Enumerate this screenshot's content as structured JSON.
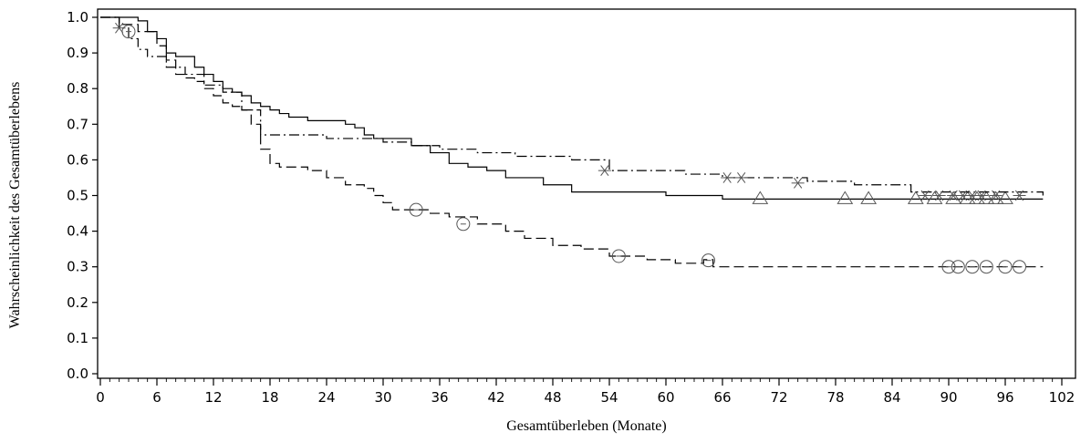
{
  "chart_data": {
    "type": "line",
    "title": "",
    "xlabel": "Gesamtüberleben (Monate)",
    "ylabel": "Wahrscheinlichkeit des Gesamtüberlebens",
    "xlim": [
      0,
      102
    ],
    "ylim": [
      0.0,
      1.0
    ],
    "x_ticks": [
      0,
      6,
      12,
      18,
      24,
      30,
      36,
      42,
      48,
      54,
      60,
      66,
      72,
      78,
      84,
      90,
      96,
      102
    ],
    "x_tick_labels": [
      "0",
      "6",
      "12",
      "18",
      "24",
      "30",
      "36",
      "42",
      "48",
      "54",
      "60",
      "66",
      "72",
      "78",
      "84",
      "90",
      "96",
      "102"
    ],
    "y_ticks": [
      0.0,
      0.1,
      0.2,
      0.3,
      0.4,
      0.5,
      0.6,
      0.7,
      0.8,
      0.9,
      1.0
    ],
    "y_tick_labels": [
      "0.0",
      "0.1",
      "0.2",
      "0.3",
      "0.4",
      "0.5",
      "0.6",
      "0.7",
      "0.8",
      "0.9",
      "1.0"
    ],
    "grid": false,
    "legend": "none",
    "series": [
      {
        "style": "solid",
        "censor_marker": "triangle",
        "x": [
          0,
          4,
          5,
          6,
          7,
          8,
          10,
          11,
          12,
          13,
          14,
          15,
          16,
          17,
          18,
          19,
          20,
          21,
          22,
          23,
          24,
          26,
          27,
          28,
          29,
          31,
          33,
          35,
          37,
          39,
          41,
          43,
          47,
          50,
          60,
          66,
          100
        ],
        "y": [
          1.0,
          0.99,
          0.96,
          0.94,
          0.9,
          0.89,
          0.86,
          0.84,
          0.82,
          0.8,
          0.79,
          0.78,
          0.76,
          0.75,
          0.74,
          0.73,
          0.72,
          0.72,
          0.71,
          0.71,
          0.71,
          0.7,
          0.69,
          0.67,
          0.66,
          0.66,
          0.64,
          0.62,
          0.59,
          0.58,
          0.57,
          0.55,
          0.53,
          0.51,
          0.5,
          0.49,
          0.49
        ],
        "censored": [
          {
            "x": 70,
            "y": 0.49
          },
          {
            "x": 79,
            "y": 0.49
          },
          {
            "x": 81.5,
            "y": 0.49
          },
          {
            "x": 86.5,
            "y": 0.49
          },
          {
            "x": 88.5,
            "y": 0.49
          },
          {
            "x": 90.5,
            "y": 0.49
          },
          {
            "x": 92,
            "y": 0.49
          },
          {
            "x": 93,
            "y": 0.49
          },
          {
            "x": 94,
            "y": 0.49
          },
          {
            "x": 95,
            "y": 0.49
          },
          {
            "x": 96,
            "y": 0.49
          }
        ]
      },
      {
        "style": "dashdot",
        "censor_marker": "asterisk",
        "x": [
          0,
          2,
          3,
          4,
          5,
          7,
          9,
          11,
          13,
          15,
          17,
          20,
          24,
          30,
          33,
          36,
          40,
          44,
          50,
          54,
          58,
          62,
          66,
          70,
          75,
          80,
          86,
          100
        ],
        "y": [
          1.0,
          0.97,
          0.94,
          0.91,
          0.89,
          0.86,
          0.84,
          0.81,
          0.79,
          0.74,
          0.67,
          0.67,
          0.66,
          0.65,
          0.64,
          0.63,
          0.62,
          0.61,
          0.6,
          0.57,
          0.57,
          0.56,
          0.55,
          0.55,
          0.54,
          0.53,
          0.51,
          0.5
        ],
        "censored": [
          {
            "x": 2,
            "y": 0.97
          },
          {
            "x": 53.5,
            "y": 0.57
          },
          {
            "x": 66.5,
            "y": 0.55
          },
          {
            "x": 68,
            "y": 0.55
          },
          {
            "x": 74,
            "y": 0.535
          },
          {
            "x": 87.5,
            "y": 0.5
          },
          {
            "x": 89,
            "y": 0.5
          },
          {
            "x": 90.5,
            "y": 0.5
          },
          {
            "x": 91.5,
            "y": 0.5
          },
          {
            "x": 92.5,
            "y": 0.5
          },
          {
            "x": 93.5,
            "y": 0.5
          },
          {
            "x": 95,
            "y": 0.5
          },
          {
            "x": 97.5,
            "y": 0.5
          }
        ]
      },
      {
        "style": "dashed",
        "censor_marker": "circle",
        "x": [
          0,
          2,
          4,
          6,
          7,
          8,
          9,
          10,
          11,
          12,
          13,
          14,
          15,
          16,
          17,
          18,
          19,
          20,
          22,
          24,
          26,
          28,
          29,
          30,
          31,
          32,
          35,
          37,
          40,
          43,
          45,
          48,
          51,
          54,
          58,
          61,
          64,
          65,
          100
        ],
        "y": [
          1.0,
          0.98,
          0.96,
          0.92,
          0.88,
          0.84,
          0.83,
          0.82,
          0.8,
          0.78,
          0.76,
          0.75,
          0.74,
          0.7,
          0.63,
          0.59,
          0.58,
          0.58,
          0.57,
          0.55,
          0.53,
          0.52,
          0.5,
          0.48,
          0.46,
          0.46,
          0.45,
          0.44,
          0.42,
          0.4,
          0.38,
          0.36,
          0.35,
          0.33,
          0.32,
          0.31,
          0.32,
          0.3,
          0.3
        ],
        "censored": [
          {
            "x": 3,
            "y": 0.96
          },
          {
            "x": 33.5,
            "y": 0.46
          },
          {
            "x": 38.5,
            "y": 0.42
          },
          {
            "x": 55,
            "y": 0.33
          },
          {
            "x": 64.5,
            "y": 0.318
          },
          {
            "x": 90,
            "y": 0.3
          },
          {
            "x": 91,
            "y": 0.3
          },
          {
            "x": 92.5,
            "y": 0.3
          },
          {
            "x": 94,
            "y": 0.3
          },
          {
            "x": 96,
            "y": 0.3
          },
          {
            "x": 97.5,
            "y": 0.3
          }
        ]
      }
    ]
  }
}
